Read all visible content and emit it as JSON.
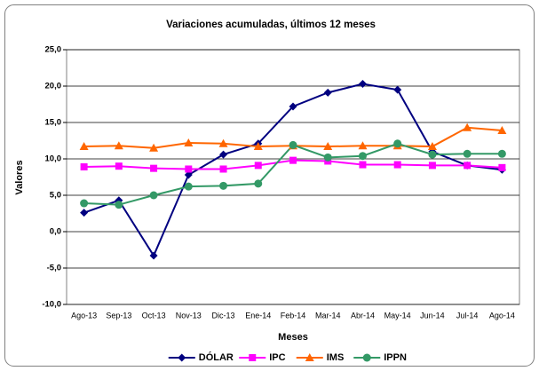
{
  "chart_data": {
    "type": "line",
    "title": "Variaciones acumuladas, últimos 12 meses",
    "x_label": "Meses",
    "y_label": "Valores",
    "categories": [
      "Ago-13",
      "Sep-13",
      "Oct-13",
      "Nov-13",
      "Dic-13",
      "Ene-14",
      "Feb-14",
      "Mar-14",
      "Abr-14",
      "May-14",
      "Jun-14",
      "Jul-14",
      "Ago-14"
    ],
    "ylim": [
      -10,
      25
    ],
    "yticks": [
      {
        "value": -10,
        "label": "-10,0"
      },
      {
        "value": -5,
        "label": "-5,0"
      },
      {
        "value": 0,
        "label": "0,0"
      },
      {
        "value": 5,
        "label": "5,0"
      },
      {
        "value": 10,
        "label": "10,0"
      },
      {
        "value": 15,
        "label": "15,0"
      },
      {
        "value": 20,
        "label": "20,0"
      },
      {
        "value": 25,
        "label": "25,0"
      }
    ],
    "grid": true,
    "legend": "bottom",
    "series": [
      {
        "name": "DÓLAR",
        "color": "#000080",
        "marker": "diamond",
        "values": [
          2.6,
          4.3,
          -3.3,
          7.8,
          10.6,
          12.1,
          17.2,
          19.1,
          20.3,
          19.5,
          11.0,
          9.1,
          8.5
        ]
      },
      {
        "name": "IPC",
        "color": "#ff00ff",
        "marker": "square",
        "values": [
          8.9,
          9.0,
          8.7,
          8.6,
          8.6,
          9.1,
          9.8,
          9.7,
          9.2,
          9.2,
          9.1,
          9.1,
          8.8
        ]
      },
      {
        "name": "IMS",
        "color": "#ff6600",
        "marker": "triangle",
        "values": [
          11.7,
          11.8,
          11.5,
          12.2,
          12.1,
          11.7,
          11.8,
          11.7,
          11.8,
          11.8,
          11.7,
          14.3,
          13.9
        ]
      },
      {
        "name": "IPPN",
        "color": "#339966",
        "marker": "circle",
        "values": [
          3.9,
          3.7,
          5.0,
          6.2,
          6.3,
          6.6,
          11.9,
          10.2,
          10.4,
          12.1,
          10.6,
          10.7,
          10.7
        ]
      }
    ]
  }
}
